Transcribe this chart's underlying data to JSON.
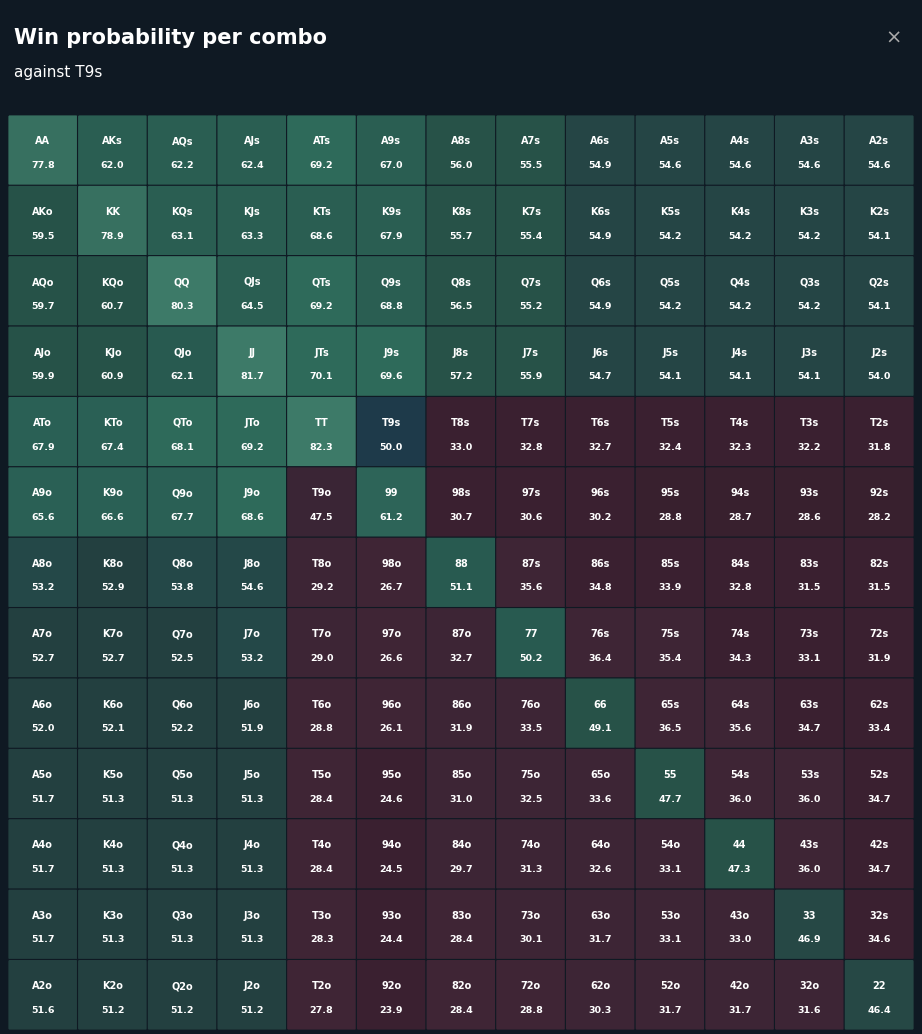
{
  "title": "Win probability per combo",
  "subtitle": "against T9s",
  "close_x": "×",
  "background_color": "#0f1923",
  "header_bg": "#0f1923",
  "grid_rows": 13,
  "grid_cols": 13,
  "cells": [
    [
      [
        "AA",
        77.8
      ],
      [
        "AKs",
        62.0
      ],
      [
        "AQs",
        62.2
      ],
      [
        "AJs",
        62.4
      ],
      [
        "ATs",
        69.2
      ],
      [
        "A9s",
        67.0
      ],
      [
        "A8s",
        56.0
      ],
      [
        "A7s",
        55.5
      ],
      [
        "A6s",
        54.9
      ],
      [
        "A5s",
        54.6
      ],
      [
        "A4s",
        54.6
      ],
      [
        "A3s",
        54.6
      ],
      [
        "A2s",
        54.6
      ]
    ],
    [
      [
        "AKo",
        59.5
      ],
      [
        "KK",
        78.9
      ],
      [
        "KQs",
        63.1
      ],
      [
        "KJs",
        63.3
      ],
      [
        "KTs",
        68.6
      ],
      [
        "K9s",
        67.9
      ],
      [
        "K8s",
        55.7
      ],
      [
        "K7s",
        55.4
      ],
      [
        "K6s",
        54.9
      ],
      [
        "K5s",
        54.2
      ],
      [
        "K4s",
        54.2
      ],
      [
        "K3s",
        54.2
      ],
      [
        "K2s",
        54.1
      ]
    ],
    [
      [
        "AQo",
        59.7
      ],
      [
        "KQo",
        60.7
      ],
      [
        "QQ",
        80.3
      ],
      [
        "QJs",
        64.5
      ],
      [
        "QTs",
        69.2
      ],
      [
        "Q9s",
        68.8
      ],
      [
        "Q8s",
        56.5
      ],
      [
        "Q7s",
        55.2
      ],
      [
        "Q6s",
        54.9
      ],
      [
        "Q5s",
        54.2
      ],
      [
        "Q4s",
        54.2
      ],
      [
        "Q3s",
        54.2
      ],
      [
        "Q2s",
        54.1
      ]
    ],
    [
      [
        "AJo",
        59.9
      ],
      [
        "KJo",
        60.9
      ],
      [
        "QJo",
        62.1
      ],
      [
        "JJ",
        81.7
      ],
      [
        "JTs",
        70.1
      ],
      [
        "J9s",
        69.6
      ],
      [
        "J8s",
        57.2
      ],
      [
        "J7s",
        55.9
      ],
      [
        "J6s",
        54.7
      ],
      [
        "J5s",
        54.1
      ],
      [
        "J4s",
        54.1
      ],
      [
        "J3s",
        54.1
      ],
      [
        "J2s",
        54.0
      ]
    ],
    [
      [
        "ATo",
        67.9
      ],
      [
        "KTo",
        67.4
      ],
      [
        "QTo",
        68.1
      ],
      [
        "JTo",
        69.2
      ],
      [
        "TT",
        82.3
      ],
      [
        "T9s",
        50.0
      ],
      [
        "T8s",
        33.0
      ],
      [
        "T7s",
        32.8
      ],
      [
        "T6s",
        32.7
      ],
      [
        "T5s",
        32.4
      ],
      [
        "T4s",
        32.3
      ],
      [
        "T3s",
        32.2
      ],
      [
        "T2s",
        31.8
      ]
    ],
    [
      [
        "A9o",
        65.6
      ],
      [
        "K9o",
        66.6
      ],
      [
        "Q9o",
        67.7
      ],
      [
        "J9o",
        68.6
      ],
      [
        "T9o",
        47.5
      ],
      [
        "99",
        61.2
      ],
      [
        "98s",
        30.7
      ],
      [
        "97s",
        30.6
      ],
      [
        "96s",
        30.2
      ],
      [
        "95s",
        28.8
      ],
      [
        "94s",
        28.7
      ],
      [
        "93s",
        28.6
      ],
      [
        "92s",
        28.2
      ]
    ],
    [
      [
        "A8o",
        53.2
      ],
      [
        "K8o",
        52.9
      ],
      [
        "Q8o",
        53.8
      ],
      [
        "J8o",
        54.6
      ],
      [
        "T8o",
        29.2
      ],
      [
        "98o",
        26.7
      ],
      [
        "88",
        51.1
      ],
      [
        "87s",
        35.6
      ],
      [
        "86s",
        34.8
      ],
      [
        "85s",
        33.9
      ],
      [
        "84s",
        32.8
      ],
      [
        "83s",
        31.5
      ],
      [
        "82s",
        31.5
      ]
    ],
    [
      [
        "A7o",
        52.7
      ],
      [
        "K7o",
        52.7
      ],
      [
        "Q7o",
        52.5
      ],
      [
        "J7o",
        53.2
      ],
      [
        "T7o",
        29.0
      ],
      [
        "97o",
        26.6
      ],
      [
        "87o",
        32.7
      ],
      [
        "77",
        50.2
      ],
      [
        "76s",
        36.4
      ],
      [
        "75s",
        35.4
      ],
      [
        "74s",
        34.3
      ],
      [
        "73s",
        33.1
      ],
      [
        "72s",
        31.9
      ]
    ],
    [
      [
        "A6o",
        52.0
      ],
      [
        "K6o",
        52.1
      ],
      [
        "Q6o",
        52.2
      ],
      [
        "J6o",
        51.9
      ],
      [
        "T6o",
        28.8
      ],
      [
        "96o",
        26.1
      ],
      [
        "86o",
        31.9
      ],
      [
        "76o",
        33.5
      ],
      [
        "66",
        49.1
      ],
      [
        "65s",
        36.5
      ],
      [
        "64s",
        35.6
      ],
      [
        "63s",
        34.7
      ],
      [
        "62s",
        33.4
      ]
    ],
    [
      [
        "A5o",
        51.7
      ],
      [
        "K5o",
        51.3
      ],
      [
        "Q5o",
        51.3
      ],
      [
        "J5o",
        51.3
      ],
      [
        "T5o",
        28.4
      ],
      [
        "95o",
        24.6
      ],
      [
        "85o",
        31.0
      ],
      [
        "75o",
        32.5
      ],
      [
        "65o",
        33.6
      ],
      [
        "55",
        47.7
      ],
      [
        "54s",
        36.0
      ],
      [
        "53s",
        36.0
      ],
      [
        "52s",
        34.7
      ]
    ],
    [
      [
        "A4o",
        51.7
      ],
      [
        "K4o",
        51.3
      ],
      [
        "Q4o",
        51.3
      ],
      [
        "J4o",
        51.3
      ],
      [
        "T4o",
        28.4
      ],
      [
        "94o",
        24.5
      ],
      [
        "84o",
        29.7
      ],
      [
        "74o",
        31.3
      ],
      [
        "64o",
        32.6
      ],
      [
        "54o",
        33.1
      ],
      [
        "44",
        47.3
      ],
      [
        "43s",
        36.0
      ],
      [
        "42s",
        34.7
      ]
    ],
    [
      [
        "A3o",
        51.7
      ],
      [
        "K3o",
        51.3
      ],
      [
        "Q3o",
        51.3
      ],
      [
        "J3o",
        51.3
      ],
      [
        "T3o",
        28.3
      ],
      [
        "93o",
        24.4
      ],
      [
        "83o",
        28.4
      ],
      [
        "73o",
        30.1
      ],
      [
        "63o",
        31.7
      ],
      [
        "53o",
        33.1
      ],
      [
        "43o",
        33.0
      ],
      [
        "33",
        46.9
      ],
      [
        "32s",
        34.6
      ]
    ],
    [
      [
        "A2o",
        51.6
      ],
      [
        "K2o",
        51.2
      ],
      [
        "Q2o",
        51.2
      ],
      [
        "J2o",
        51.2
      ],
      [
        "T2o",
        27.8
      ],
      [
        "92o",
        23.9
      ],
      [
        "82o",
        28.4
      ],
      [
        "72o",
        28.8
      ],
      [
        "62o",
        30.3
      ],
      [
        "52o",
        31.7
      ],
      [
        "42o",
        31.7
      ],
      [
        "32o",
        31.6
      ],
      [
        "22",
        46.4
      ]
    ]
  ]
}
